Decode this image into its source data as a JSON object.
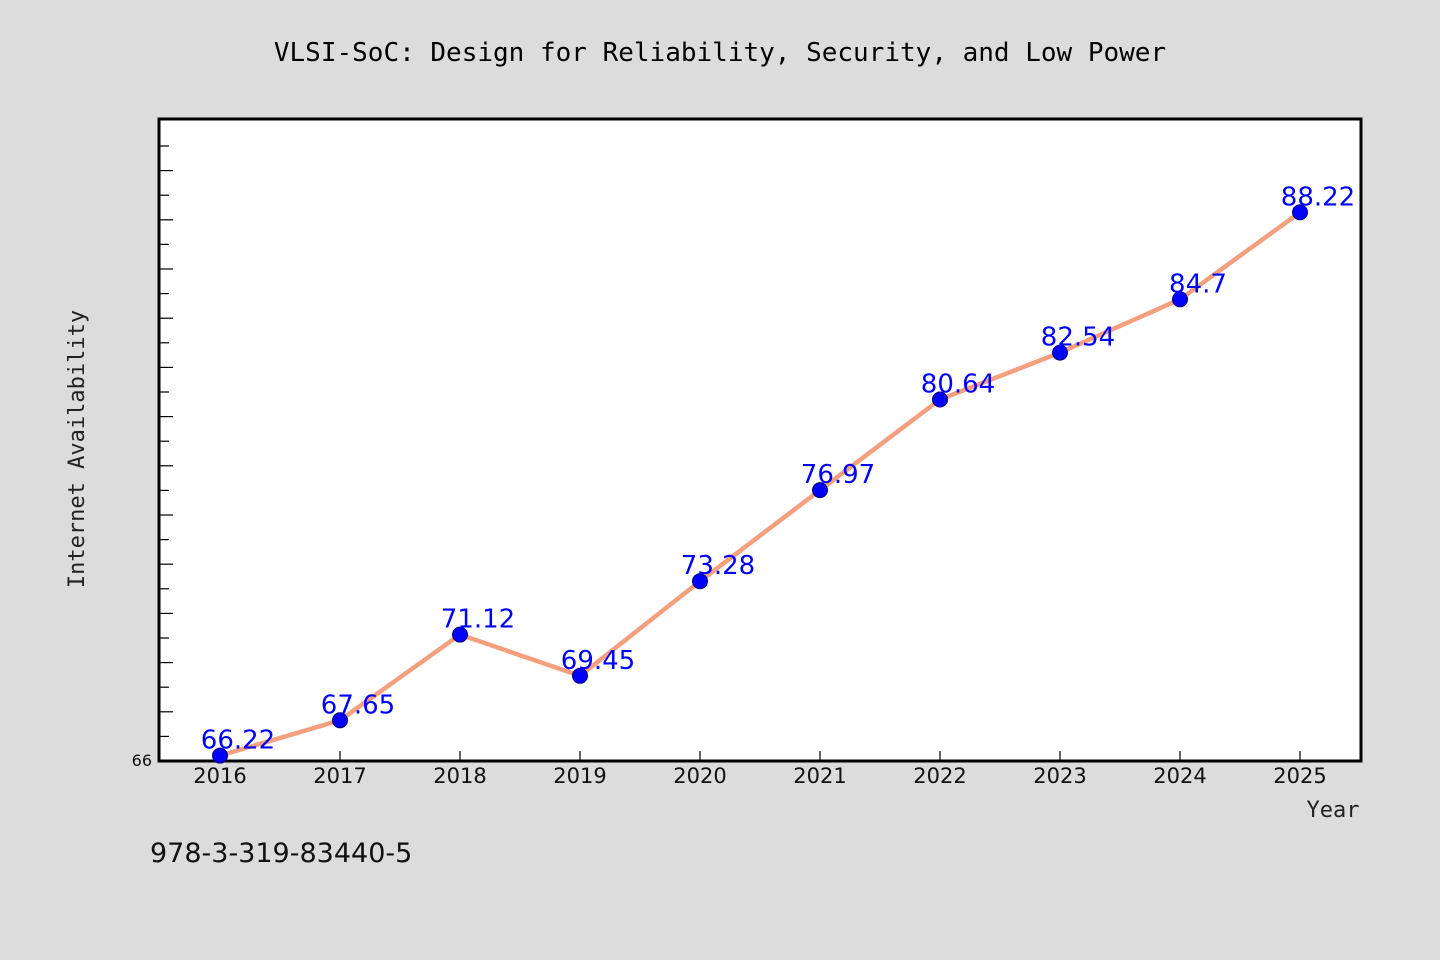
{
  "chart_data": {
    "type": "line",
    "title": "VLSI-SoC: Design for Reliability, Security, and Low Power",
    "xlabel": "Year",
    "ylabel": "Internet Availability",
    "categories": [
      "2016",
      "2017",
      "2018",
      "2019",
      "2020",
      "2021",
      "2022",
      "2023",
      "2024",
      "2025"
    ],
    "series": [
      {
        "values": [
          66.22,
          67.65,
          71.12,
          69.45,
          73.28,
          76.97,
          80.64,
          82.54,
          84.7,
          88.22
        ],
        "line_color": "#f4a07f",
        "marker_color": "#0000ff"
      }
    ],
    "data_labels": [
      "66.22",
      "67.65",
      "71.12",
      "69.45",
      "73.28",
      "76.97",
      "80.64",
      "82.54",
      "84.7",
      "88.22"
    ],
    "ylim": [
      66,
      92
    ],
    "y_tick_labels": [
      "66"
    ],
    "grid": false,
    "legend": "none"
  },
  "footer": {
    "isbn": "978-3-319-83440-5"
  }
}
